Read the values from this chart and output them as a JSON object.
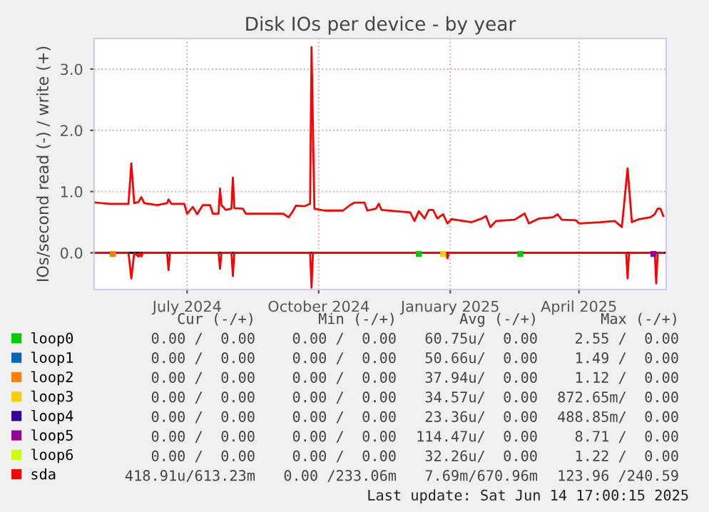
{
  "chart_data": {
    "type": "line",
    "title": "Disk IOs per device - by year",
    "ylabel": "IOs/second read (-) / write (+)",
    "xlim": [
      "2024-05-12",
      "2025-06-16"
    ],
    "ylim": [
      -0.6,
      3.5
    ],
    "yticks": [
      {
        "value": 0.0,
        "label": "0.0"
      },
      {
        "value": 1.0,
        "label": "1.0"
      },
      {
        "value": 2.0,
        "label": "2.0"
      },
      {
        "value": 3.0,
        "label": "3.0"
      }
    ],
    "xticks": [
      {
        "value": "2024-07-16",
        "label": "July 2024"
      },
      {
        "value": "2024-10-16",
        "label": "October 2024"
      },
      {
        "value": "2025-01-16",
        "label": "January 2025"
      },
      {
        "value": "2025-04-16",
        "label": "April 2025"
      }
    ],
    "grid": true,
    "legend": "bottom",
    "ref_lines": [
      {
        "axis": "y",
        "value": 0,
        "color": "#000000"
      }
    ],
    "series": [
      {
        "name": "loop0",
        "type": "scatter",
        "color": "#00cc00",
        "x": [
          "2024-12-25",
          "2025-03-06"
        ],
        "values": [
          -0.02,
          -0.02
        ]
      },
      {
        "name": "loop1",
        "type": "scatter",
        "color": "#0066b3"
      },
      {
        "name": "loop2",
        "type": "scatter",
        "color": "#ff8000",
        "x": [
          "2024-05-25"
        ],
        "values": [
          -0.02
        ]
      },
      {
        "name": "loop3",
        "type": "scatter",
        "color": "#ffcc00",
        "x": [
          "2025-01-11"
        ],
        "values": [
          -0.02
        ]
      },
      {
        "name": "loop4",
        "type": "scatter",
        "color": "#330099"
      },
      {
        "name": "loop5",
        "type": "scatter",
        "color": "#990099",
        "x": [
          "2025-06-07"
        ],
        "values": [
          -0.02
        ]
      },
      {
        "name": "loop6",
        "type": "scatter",
        "color": "#ccff00"
      },
      {
        "color": "#ff0000",
        "x": [
          "2024-05-13",
          "2024-06-05",
          "2024-06-07",
          "2024-06-09",
          "2024-06-12",
          "2024-06-13",
          "2024-06-14",
          "2024-06-15",
          "2024-07-02",
          "2024-07-03",
          "2024-07-04",
          "2024-08-07",
          "2024-08-08",
          "2024-08-09",
          "2024-08-16",
          "2024-08-17",
          "2024-08-18",
          "2024-10-10",
          "2024-10-11",
          "2024-10-12",
          "2025-01-13",
          "2025-01-14",
          "2025-01-15",
          "2025-05-19",
          "2025-05-20",
          "2025-05-21",
          "2025-06-08",
          "2025-06-09",
          "2025-06-10",
          "2025-06-14"
        ],
        "values": [
          0,
          0,
          -0.42,
          0,
          -0.06,
          0,
          -0.06,
          0,
          0,
          -0.28,
          0,
          0,
          -0.26,
          0,
          0,
          -0.38,
          0,
          0,
          -0.57,
          0,
          0,
          -0.09,
          0,
          0,
          -0.42,
          0,
          0,
          -0.5,
          0,
          0
        ]
      },
      {
        "name": "sda",
        "color": "#ff0000",
        "x": [
          "2024-05-13",
          "2024-05-23",
          "2024-06-02",
          "2024-06-05",
          "2024-06-07",
          "2024-06-09",
          "2024-06-12",
          "2024-06-14",
          "2024-06-16",
          "2024-06-25",
          "2024-07-02",
          "2024-07-03",
          "2024-07-05",
          "2024-07-14",
          "2024-07-16",
          "2024-07-20",
          "2024-07-23",
          "2024-07-27",
          "2024-08-01",
          "2024-08-03",
          "2024-08-07",
          "2024-08-08",
          "2024-08-09",
          "2024-08-12",
          "2024-08-16",
          "2024-08-17",
          "2024-08-18",
          "2024-08-24",
          "2024-08-26",
          "2024-09-21",
          "2024-09-25",
          "2024-09-28",
          "2024-09-30",
          "2024-10-06",
          "2024-10-10",
          "2024-10-11",
          "2024-10-13",
          "2024-10-20",
          "2024-11-02",
          "2024-11-07",
          "2024-11-10",
          "2024-11-17",
          "2024-11-19",
          "2024-11-25",
          "2024-11-27",
          "2024-11-29",
          "2024-12-09",
          "2024-12-19",
          "2024-12-22",
          "2024-12-25",
          "2024-12-29",
          "2025-01-01",
          "2025-01-04",
          "2025-01-07",
          "2025-01-11",
          "2025-01-14",
          "2025-01-17",
          "2025-01-31",
          "2025-02-07",
          "2025-02-10",
          "2025-02-13",
          "2025-02-17",
          "2025-03-02",
          "2025-03-09",
          "2025-03-12",
          "2025-03-19",
          "2025-03-29",
          "2025-04-01",
          "2025-04-04",
          "2025-04-14",
          "2025-04-16",
          "2025-05-01",
          "2025-05-11",
          "2025-05-16",
          "2025-05-20",
          "2025-05-23",
          "2025-05-28",
          "2025-06-05",
          "2025-06-08",
          "2025-06-10",
          "2025-06-12",
          "2025-06-14"
        ],
        "values": [
          0.82,
          0.8,
          0.8,
          0.8,
          1.46,
          0.81,
          0.83,
          0.91,
          0.81,
          0.78,
          0.81,
          0.87,
          0.8,
          0.8,
          0.64,
          0.75,
          0.63,
          0.78,
          0.78,
          0.64,
          0.64,
          1.05,
          0.78,
          0.7,
          0.72,
          1.23,
          0.73,
          0.72,
          0.64,
          0.64,
          0.58,
          0.68,
          0.77,
          0.76,
          0.8,
          3.36,
          0.72,
          0.69,
          0.69,
          0.78,
          0.82,
          0.82,
          0.69,
          0.72,
          0.8,
          0.7,
          0.68,
          0.66,
          0.52,
          0.68,
          0.56,
          0.7,
          0.7,
          0.56,
          0.63,
          0.48,
          0.55,
          0.5,
          0.56,
          0.6,
          0.42,
          0.52,
          0.54,
          0.64,
          0.48,
          0.56,
          0.58,
          0.63,
          0.54,
          0.53,
          0.48,
          0.5,
          0.52,
          0.42,
          1.38,
          0.5,
          0.55,
          0.58,
          0.63,
          0.72,
          0.72,
          0.6
        ]
      }
    ],
    "annotations": [
      "Cur (-/+)",
      "Min (-/+)",
      "Avg (-/+)",
      "Max (-/+)",
      "0.00 /  0.00",
      "0.00 /  0.00",
      "60.75u/  0.00",
      "2.55 /  0.00",
      "0.00 /  0.00",
      "0.00 /  0.00",
      "50.66u/  0.00",
      "1.49 /  0.00",
      "0.00 /  0.00",
      "0.00 /  0.00",
      "37.94u/  0.00",
      "1.12 /  0.00",
      "0.00 /  0.00",
      "0.00 /  0.00",
      "34.57u/  0.00",
      "872.65m/  0.00",
      "0.00 /  0.00",
      "0.00 /  0.00",
      "23.36u/  0.00",
      "488.85m/  0.00",
      "0.00 /  0.00",
      "0.00 /  0.00",
      "114.47u/  0.00",
      "8.71 /  0.00",
      "0.00 /  0.00",
      "0.00 /  0.00",
      "32.26u/  0.00",
      "1.22 /  0.00",
      "418.91u/613.23m",
      "0.00 /233.06m",
      "7.69m/670.96m",
      "123.96 /240.59",
      "Last update: Sat Jun 14 17:00:15 2025"
    ]
  }
}
